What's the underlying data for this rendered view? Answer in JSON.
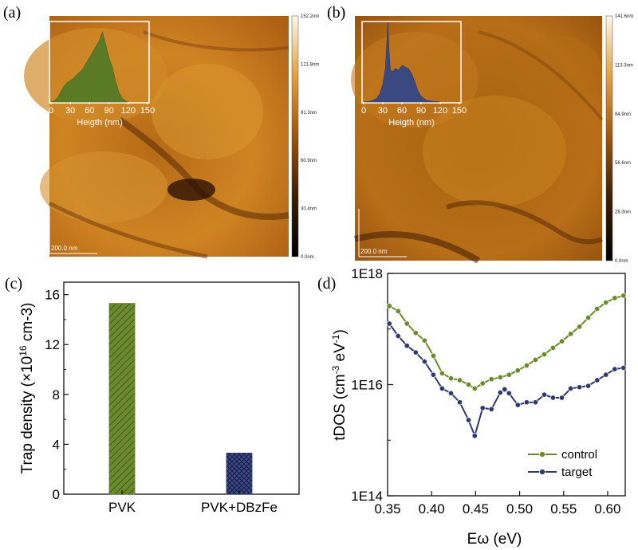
{
  "chart_data": [
    {
      "panel": "(a)",
      "type": "heatmap",
      "scale_bar": "200.0 nm",
      "colorbar": {
        "ticks": [
          "152.2nm",
          "121.8nm",
          "91.3nm",
          "60.9nm",
          "30.4nm",
          "0.0nm"
        ],
        "range": [
          0,
          152.2
        ]
      },
      "inset": {
        "type": "area",
        "xlabel": "Heigth (nm)",
        "xticks": [
          "0",
          "30",
          "60",
          "90",
          "120",
          "150"
        ],
        "xlim": [
          0,
          150
        ],
        "color": "#5b7a26",
        "x": [
          0,
          5,
          10,
          15,
          20,
          25,
          30,
          35,
          40,
          45,
          50,
          55,
          60,
          65,
          70,
          75,
          80,
          85,
          90,
          95,
          100,
          105,
          110,
          115,
          120
        ],
        "values": [
          0,
          0.02,
          0.06,
          0.14,
          0.22,
          0.27,
          0.3,
          0.33,
          0.38,
          0.42,
          0.47,
          0.55,
          0.62,
          0.7,
          0.78,
          0.86,
          0.98,
          0.8,
          0.62,
          0.5,
          0.3,
          0.15,
          0.06,
          0.02,
          0
        ]
      }
    },
    {
      "panel": "(b)",
      "type": "heatmap",
      "scale_bar": "200.0 nm",
      "colorbar": {
        "ticks": [
          "141.6nm",
          "113.3nm",
          "84.9nm",
          "56.6nm",
          "28.3nm",
          "0.0nm"
        ],
        "range": [
          0,
          141.6
        ]
      },
      "inset": {
        "type": "area",
        "xlabel": "Heigth (nm)",
        "xticks": [
          "0",
          "30",
          "60",
          "90",
          "120",
          "150"
        ],
        "xlim": [
          0,
          150
        ],
        "color": "#3a4a80",
        "x": [
          0,
          10,
          20,
          25,
          30,
          34,
          36,
          38,
          40,
          42,
          45,
          50,
          55,
          60,
          65,
          70,
          75,
          80,
          85,
          90,
          95,
          100,
          110,
          120
        ],
        "values": [
          0,
          0.01,
          0.04,
          0.1,
          0.22,
          0.42,
          0.7,
          1.0,
          0.62,
          0.4,
          0.38,
          0.42,
          0.4,
          0.46,
          0.44,
          0.42,
          0.36,
          0.26,
          0.14,
          0.07,
          0.04,
          0.02,
          0.01,
          0
        ]
      }
    },
    {
      "panel": "(c)",
      "type": "bar",
      "categories": [
        "PVK",
        "PVK+DBzFe"
      ],
      "values": [
        15.3,
        3.3
      ],
      "ylabel": "Trap density (×10",
      "ylabel_sup": "16",
      "ylabel_tail": " cm-3)",
      "ylim": [
        0,
        16
      ],
      "yticks": [
        "0",
        "4",
        "8",
        "12",
        "16"
      ],
      "colors": [
        "#5b7a26",
        "#2e3a6e"
      ],
      "patterns": [
        "diagonal",
        "crosshatch"
      ]
    },
    {
      "panel": "(d)",
      "type": "line",
      "xlabel": "Eω (eV)",
      "ylabel": "tDOS (cm",
      "ylabel_sup1": "-3",
      "ylabel_mid": " eV",
      "ylabel_sup2": "-1",
      "ylabel_tail": ")",
      "xlim": [
        0.35,
        0.62
      ],
      "ylim": [
        100000000000000.0,
        1e+18
      ],
      "yscale": "log",
      "xticks": [
        "0.35",
        "0.40",
        "0.45",
        "0.50",
        "0.55",
        "0.60"
      ],
      "yticks": [
        "1E14",
        "1E16",
        "1E18"
      ],
      "legend": "bottom-right",
      "series": [
        {
          "name": "control",
          "color": "#6a8a2a",
          "x": [
            0.352,
            0.362,
            0.372,
            0.382,
            0.392,
            0.402,
            0.412,
            0.422,
            0.432,
            0.442,
            0.449,
            0.458,
            0.468,
            0.478,
            0.488,
            0.498,
            0.508,
            0.518,
            0.528,
            0.538,
            0.548,
            0.558,
            0.568,
            0.578,
            0.588,
            0.598,
            0.608,
            0.618
          ],
          "y": [
            2.6e+17,
            2.1e+17,
            1.25e+17,
            8.5e+16,
            6.2e+16,
            3.3e+16,
            1.6e+16,
            1.3e+16,
            1.2e+16,
            1e+16,
            8500000000000000.0,
            1.05e+16,
            1.25e+16,
            1.35e+16,
            1.5e+16,
            1.8e+16,
            2.2e+16,
            2.8e+16,
            3.5e+16,
            4.6e+16,
            6e+16,
            8.2e+16,
            1.1e+17,
            1.6e+17,
            2.3e+17,
            3e+17,
            3.6e+17,
            4e+17
          ]
        },
        {
          "name": "target",
          "color": "#2e3a6e",
          "x": [
            0.352,
            0.362,
            0.372,
            0.382,
            0.392,
            0.402,
            0.412,
            0.422,
            0.432,
            0.442,
            0.449,
            0.458,
            0.468,
            0.478,
            0.483,
            0.488,
            0.498,
            0.508,
            0.518,
            0.528,
            0.538,
            0.548,
            0.558,
            0.568,
            0.578,
            0.588,
            0.598,
            0.608,
            0.618
          ],
          "y": [
            1.25e+17,
            7.5e+16,
            5e+16,
            3.8e+16,
            2.6e+16,
            1.5e+16,
            8500000000000000.0,
            7000000000000000.0,
            4800000000000000.0,
            2300000000000000.0,
            1200000000000000.0,
            3800000000000000.0,
            3600000000000000.0,
            7200000000000000.0,
            8200000000000000.0,
            7000000000000000.0,
            4300000000000000.0,
            4800000000000000.0,
            4800000000000000.0,
            6600000000000000.0,
            5800000000000000.0,
            5800000000000000.0,
            8500000000000000.0,
            9000000000000000.0,
            9500000000000000.0,
            1.2e+16,
            1.5e+16,
            1.9e+16,
            2e+16
          ]
        }
      ]
    }
  ]
}
